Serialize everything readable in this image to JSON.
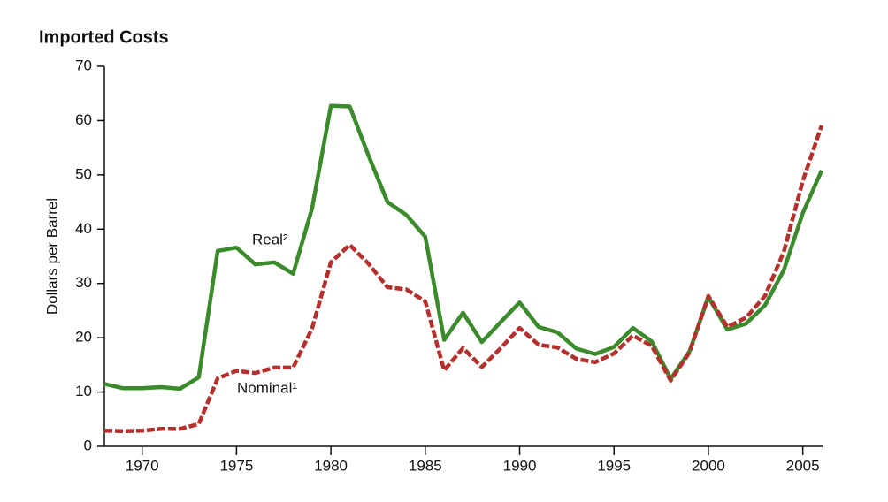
{
  "chart_data": {
    "type": "line",
    "title": "Imported Costs",
    "y_label": "Dollars per Barrel",
    "x": [
      1968,
      1969,
      1970,
      1971,
      1972,
      1973,
      1974,
      1975,
      1976,
      1977,
      1978,
      1979,
      1980,
      1981,
      1982,
      1983,
      1984,
      1985,
      1986,
      1987,
      1988,
      1989,
      1990,
      1991,
      1992,
      1993,
      1994,
      1995,
      1996,
      1997,
      1998,
      1999,
      2000,
      2001,
      2002,
      2003,
      2004,
      2005,
      2006
    ],
    "series": [
      {
        "name": "Real²",
        "color": "#3b8a2b",
        "dash": false,
        "values": [
          11.5,
          10.7,
          10.7,
          10.9,
          10.6,
          12.7,
          36.0,
          36.6,
          33.5,
          33.9,
          31.8,
          43.8,
          62.7,
          62.6,
          53.5,
          45.0,
          42.6,
          38.6,
          19.6,
          24.6,
          19.2,
          22.9,
          26.5,
          22.0,
          21.0,
          18.0,
          17.0,
          18.3,
          21.8,
          19.3,
          12.4,
          17.5,
          27.5,
          21.5,
          22.6,
          26.0,
          32.5,
          43.0,
          50.8
        ]
      },
      {
        "name": "Nominal¹",
        "color": "#b5302c",
        "dash": true,
        "values": [
          2.9,
          2.8,
          2.9,
          3.2,
          3.2,
          4.1,
          12.5,
          13.9,
          13.5,
          14.5,
          14.5,
          21.7,
          33.9,
          37.1,
          33.6,
          29.3,
          28.9,
          26.7,
          14.0,
          18.1,
          14.6,
          18.1,
          21.8,
          18.7,
          18.2,
          16.1,
          15.5,
          17.1,
          20.4,
          18.5,
          12.1,
          17.3,
          27.7,
          22.0,
          23.7,
          27.7,
          35.9,
          48.9,
          59.1
        ]
      }
    ],
    "xlim": [
      1968,
      2006
    ],
    "xticks": [
      1970,
      1975,
      1980,
      1985,
      1990,
      1995,
      2000,
      2005
    ],
    "ylim": [
      0,
      70
    ],
    "yticks": [
      0,
      10,
      20,
      30,
      40,
      50,
      60,
      70
    ],
    "grid": false
  }
}
